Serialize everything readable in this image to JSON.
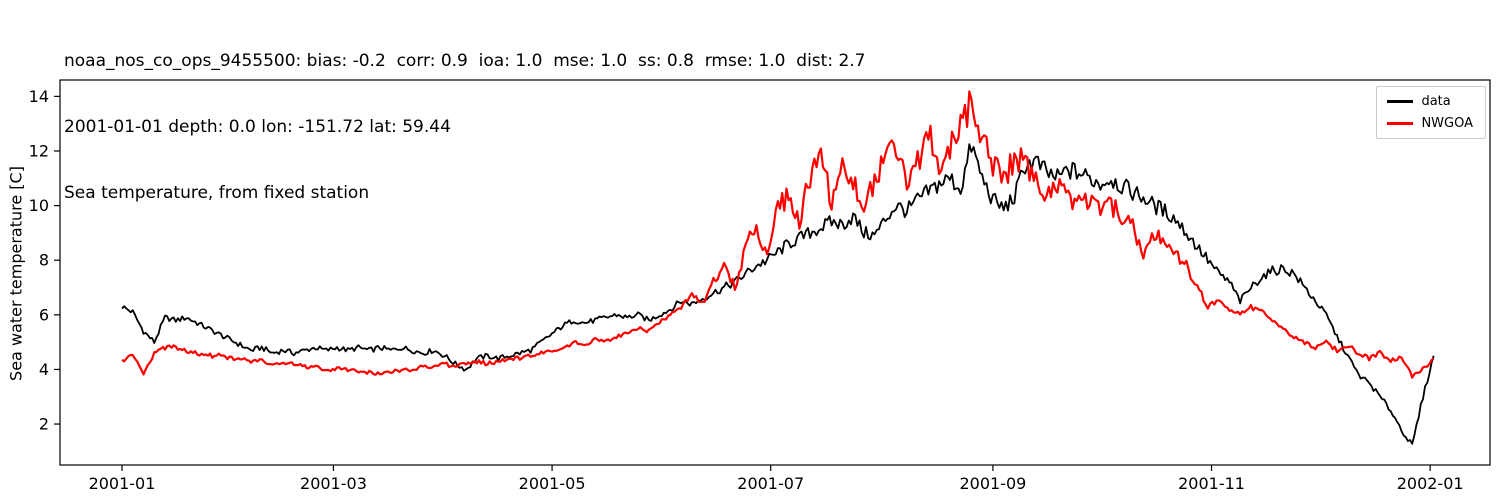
{
  "titles": {
    "line1": "noaa_nos_co_ops_9455500: bias: -0.2  corr: 0.9  ioa: 1.0  mse: 1.0  ss: 0.8  rmse: 1.0  dist: 2.7",
    "line2": "2001-01-01 depth: 0.0 lon: -151.72 lat: 59.44",
    "line3": "Sea temperature, from fixed station"
  },
  "chart_data": {
    "type": "line",
    "title": "Sea temperature, from fixed station",
    "subtitle_stats": "noaa_nos_co_ops_9455500: bias: -0.2 corr: 0.9 ioa: 1.0 mse: 1.0 ss: 0.8 rmse: 1.0 dist: 2.7",
    "station_meta": "2001-01-01 depth: 0.0 lon: -151.72 lat: 59.44",
    "xlabel": "",
    "ylabel": "Sea water temperature [C]",
    "ylim": [
      0.5,
      14.6
    ],
    "xlim_days": [
      -17.3,
      381.7
    ],
    "grid": false,
    "yticks": [
      2,
      4,
      6,
      8,
      10,
      12,
      14
    ],
    "xticks": [
      {
        "day": 0,
        "label": "2001-01"
      },
      {
        "day": 59,
        "label": "2001-03"
      },
      {
        "day": 120,
        "label": "2001-05"
      },
      {
        "day": 181,
        "label": "2001-07"
      },
      {
        "day": 243,
        "label": "2001-09"
      },
      {
        "day": 304,
        "label": "2001-11"
      },
      {
        "day": 365,
        "label": "2002-01"
      }
    ],
    "legend": {
      "position": "upper right",
      "entries": [
        "data",
        "NWGOA"
      ]
    },
    "series": [
      {
        "name": "data",
        "color": "#000000",
        "linewidth": 1.8,
        "noise_base": 0.1,
        "noise_scale": 0.05,
        "x_start": 0,
        "x_step": 3,
        "y": [
          6.3,
          6.1,
          5.4,
          5.0,
          5.9,
          5.8,
          5.9,
          5.7,
          5.5,
          5.3,
          5.1,
          4.9,
          4.7,
          4.8,
          4.6,
          4.7,
          4.6,
          4.7,
          4.8,
          4.7,
          4.8,
          4.7,
          4.8,
          4.7,
          4.8,
          4.7,
          4.8,
          4.7,
          4.6,
          4.7,
          4.5,
          4.2,
          4.0,
          4.4,
          4.5,
          4.4,
          4.5,
          4.6,
          4.7,
          5.0,
          5.3,
          5.6,
          5.8,
          5.7,
          5.8,
          5.9,
          6.0,
          5.9,
          6.0,
          5.8,
          6.0,
          6.2,
          6.5,
          6.4,
          6.6,
          6.8,
          7.0,
          7.2,
          7.5,
          7.8,
          8.0,
          8.3,
          8.6,
          8.8,
          9.0,
          9.2,
          9.4,
          9.3,
          9.6,
          9.0,
          8.9,
          9.5,
          10.0,
          9.8,
          10.2,
          10.5,
          10.8,
          11.0,
          10.6,
          12.2,
          11.0,
          10.2,
          9.9,
          10.3,
          11.5,
          11.6,
          11.2,
          11.0,
          11.3,
          11.2,
          11.0,
          10.8,
          11.0,
          10.7,
          10.5,
          10.3,
          10.0,
          9.8,
          9.5,
          9.0,
          8.5,
          8.0,
          7.5,
          7.2,
          6.5,
          7.0,
          7.4,
          7.6,
          7.7,
          7.5,
          7.0,
          6.5,
          6.0,
          5.2,
          4.5,
          3.8,
          3.5,
          3.0,
          2.5,
          1.8,
          1.2,
          3.0,
          4.5
        ]
      },
      {
        "name": "NWGOA",
        "color": "#ff0000",
        "linewidth": 2.2,
        "noise_base": 0.08,
        "noise_scale": 0.08,
        "x_start": 0,
        "x_step": 3,
        "y": [
          4.3,
          4.5,
          3.8,
          4.6,
          4.8,
          4.8,
          4.7,
          4.6,
          4.5,
          4.5,
          4.4,
          4.4,
          4.3,
          4.3,
          4.2,
          4.2,
          4.2,
          4.1,
          4.1,
          4.0,
          4.0,
          4.0,
          3.9,
          3.9,
          3.8,
          3.9,
          4.0,
          4.0,
          4.1,
          4.1,
          4.2,
          4.1,
          4.2,
          4.3,
          4.2,
          4.3,
          4.4,
          4.4,
          4.5,
          4.6,
          4.7,
          4.8,
          5.0,
          4.9,
          5.1,
          5.0,
          5.2,
          5.3,
          5.5,
          5.4,
          5.7,
          6.0,
          6.3,
          6.8,
          6.4,
          7.2,
          7.8,
          7.0,
          8.5,
          9.2,
          8.3,
          9.8,
          10.5,
          9.5,
          11.0,
          11.8,
          10.2,
          11.3,
          10.8,
          9.8,
          11.0,
          11.5,
          12.2,
          10.8,
          11.5,
          12.8,
          11.2,
          12.0,
          13.0,
          13.8,
          12.5,
          11.5,
          11.0,
          11.8,
          11.6,
          10.8,
          10.4,
          10.8,
          10.2,
          10.0,
          10.2,
          9.8,
          10.0,
          9.6,
          9.4,
          8.0,
          9.0,
          8.7,
          8.2,
          7.8,
          7.0,
          6.3,
          6.5,
          6.2,
          6.0,
          6.3,
          6.1,
          5.8,
          5.5,
          5.2,
          5.0,
          4.8,
          5.0,
          4.7,
          4.9,
          4.6,
          4.4,
          4.6,
          4.3,
          4.5,
          3.7,
          4.0,
          4.4
        ]
      }
    ]
  }
}
